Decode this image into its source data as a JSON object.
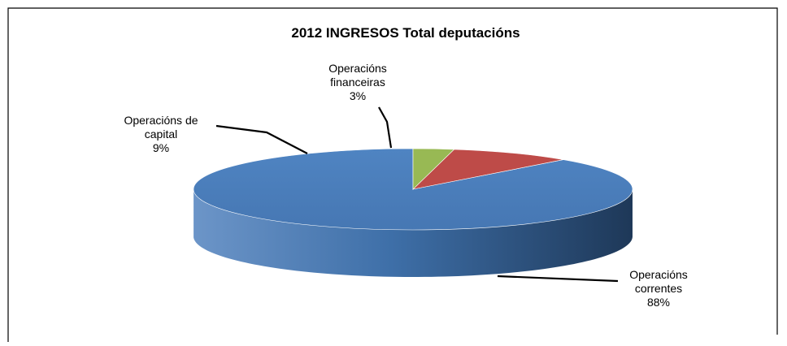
{
  "chart_data": {
    "type": "pie",
    "title": "2012  INGRESOS Total deputacións",
    "three_d": true,
    "legend": "none",
    "slices": [
      {
        "label_lines": [
          "Operacións",
          "correntes"
        ],
        "value": 88,
        "value_label": "88%",
        "color": "#4A7EBB",
        "side_color": "#3A679C"
      },
      {
        "label_lines": [
          "Operacións de",
          "capital"
        ],
        "value": 9,
        "value_label": "9%",
        "color": "#BE4B48",
        "side_color": "#98413E"
      },
      {
        "label_lines": [
          "Operacións",
          "financeiras"
        ],
        "value": 3,
        "value_label": "3%",
        "color": "#98B954",
        "side_color": "#7A9643"
      }
    ]
  }
}
